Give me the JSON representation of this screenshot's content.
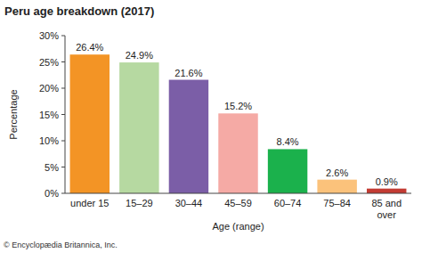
{
  "chart_data": {
    "type": "bar",
    "title": "Peru age breakdown (2017)",
    "x_label": "Age (range)",
    "y_label": "Percentage",
    "source": "© Encyclopædia Britannica, Inc.",
    "categories": [
      "under 15",
      "15–29",
      "30–44",
      "45–59",
      "60–74",
      "75–84",
      "85 and over"
    ],
    "values": [
      26.4,
      24.9,
      21.6,
      15.2,
      8.4,
      2.6,
      0.9
    ],
    "value_labels": [
      "26.4%",
      "24.9%",
      "21.6%",
      "15.2%",
      "8.4%",
      "2.6%",
      "0.9%"
    ],
    "colors": [
      "#f39425",
      "#b6d9a1",
      "#7b5ea7",
      "#f5aaa5",
      "#1bb14c",
      "#fbc27b",
      "#c33b33"
    ],
    "ylim": [
      0,
      30
    ],
    "yticks": [
      {
        "value": 0,
        "label": "0%"
      },
      {
        "value": 5,
        "label": "5%"
      },
      {
        "value": 10,
        "label": "10%"
      },
      {
        "value": 15,
        "label": "15%"
      },
      {
        "value": 20,
        "label": "20%"
      },
      {
        "value": 25,
        "label": "25%"
      },
      {
        "value": 30,
        "label": "30%"
      }
    ],
    "grid": false,
    "data_labels": true
  }
}
